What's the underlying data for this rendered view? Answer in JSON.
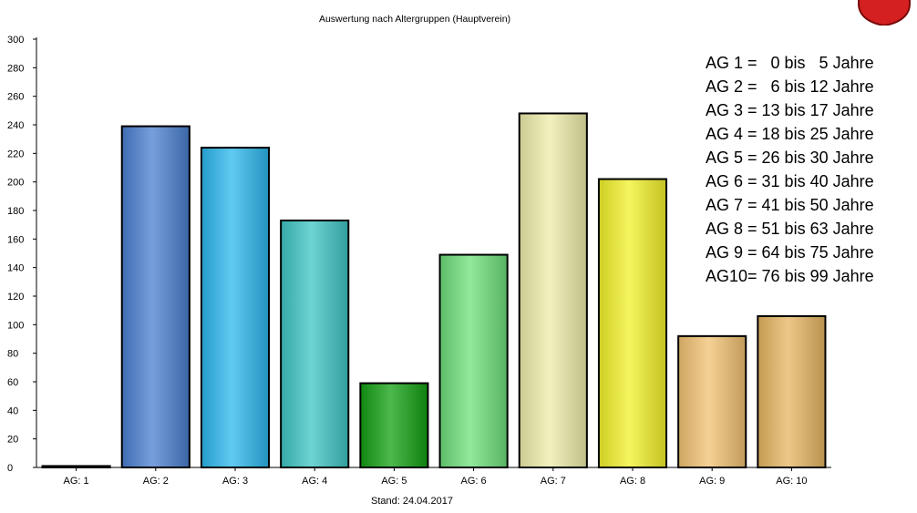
{
  "chart_data": {
    "type": "bar",
    "title": "Auswertung nach Altergruppen (Hauptverein)",
    "footer": "Stand: 24.04.2017",
    "categories": [
      "AG: 1",
      "AG: 2",
      "AG: 3",
      "AG: 4",
      "AG: 5",
      "AG: 6",
      "AG: 7",
      "AG: 8",
      "AG: 9",
      "AG: 10"
    ],
    "values": [
      1,
      239,
      224,
      173,
      59,
      149,
      248,
      202,
      92,
      106
    ],
    "bar_colors": [
      "#111111",
      "#4a7fd0",
      "#2bb8ee",
      "#3ec4c4",
      "#12a012",
      "#6de07a",
      "#eeeeaa",
      "#f2f22a",
      "#f2c272",
      "#e6b660"
    ],
    "ylim": [
      0,
      300
    ],
    "yticks": [
      0,
      20,
      40,
      60,
      80,
      100,
      120,
      140,
      160,
      180,
      200,
      220,
      240,
      260,
      280,
      300
    ],
    "xlabel": "",
    "ylabel": "",
    "grid": false,
    "legend_position": "right",
    "legend": [
      "AG 1 =   0 bis   5 Jahre",
      "AG 2 =   6 bis 12 Jahre",
      "AG 3 = 13 bis 17 Jahre",
      "AG 4 = 18 bis 25 Jahre",
      "AG 5 = 26 bis 30 Jahre",
      "AG 6 = 31 bis 40 Jahre",
      "AG 7 = 41 bis 50 Jahre",
      "AG 8 = 51 bis 63 Jahre",
      "AG 9 = 64 bis 75 Jahre",
      "AG10= 76 bis 99 Jahre"
    ]
  },
  "logo": {
    "icon": "red-shield-crest-icon",
    "color": "#d42020"
  }
}
